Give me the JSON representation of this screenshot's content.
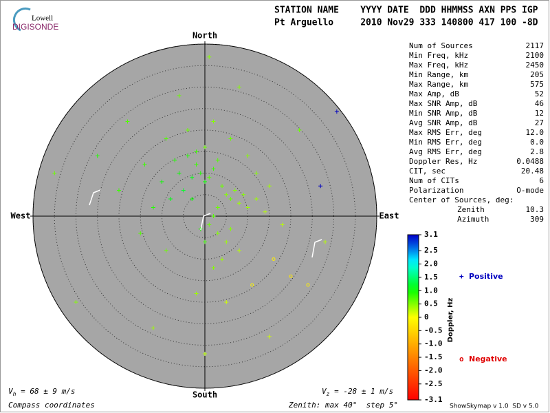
{
  "logo": {
    "top": "Lowell",
    "bottom": "DIGISONDE"
  },
  "header": {
    "columns": "STATION NAME    YYYY DATE  DDD HHMMSS AXN PPS IGP",
    "values": "Pt Arguello     2010 Nov29 333 140800 417 100 -8D"
  },
  "stats": [
    {
      "label": "Num of Sources",
      "value": "2117"
    },
    {
      "label": "Min Freq, kHz",
      "value": "2100"
    },
    {
      "label": "Max Freq, kHz",
      "value": "2450"
    },
    {
      "label": "Min Range, km",
      "value": "205"
    },
    {
      "label": "Max Range, km",
      "value": "575"
    },
    {
      "label": "Max Amp, dB",
      "value": "52"
    },
    {
      "label": "Max SNR Amp, dB",
      "value": "46"
    },
    {
      "label": "Min SNR Amp, dB",
      "value": "12"
    },
    {
      "label": "Avg SNR Amp, dB",
      "value": "27"
    },
    {
      "label": "Max RMS Err, deg",
      "value": "12.0"
    },
    {
      "label": "Min RMS Err, deg",
      "value": "0.0"
    },
    {
      "label": "Avg RMS Err, deg",
      "value": "2.8"
    },
    {
      "label": "Doppler Res, Hz",
      "value": "0.0488"
    },
    {
      "label": "CIT, sec",
      "value": "20.48"
    },
    {
      "label": "Num of CITs",
      "value": "6"
    },
    {
      "label": "Polarization",
      "value": "O-mode"
    }
  ],
  "center_of_sources": {
    "label": "Center of Sources, deg:",
    "zenith_label": "Zenith",
    "zenith": "10.3",
    "azimuth_label": "Azimuth",
    "azimuth": "309"
  },
  "chart_data": {
    "type": "scatter",
    "directions": {
      "north": "North",
      "south": "South",
      "west": "West",
      "east": "East"
    },
    "xlim": [
      -40,
      40
    ],
    "ylim": [
      -40,
      40
    ],
    "rings": [
      5,
      10,
      15,
      20,
      25,
      30,
      35,
      40
    ],
    "x": [
      -2,
      -1,
      0,
      1,
      2,
      -3,
      -4,
      -2,
      0,
      3,
      4,
      5,
      6,
      7,
      8,
      9,
      10,
      12,
      14,
      3,
      2,
      1,
      3,
      5,
      6,
      8,
      4,
      2,
      0,
      -1,
      -3,
      -5,
      -6,
      -7,
      -8,
      -10,
      -12,
      -14,
      -9,
      -4,
      2,
      6,
      10,
      12,
      15,
      18,
      16,
      20,
      24,
      11,
      5,
      -2,
      -9,
      -15,
      -20,
      -25,
      -18,
      -6,
      8,
      22,
      30.7,
      26.9,
      -30,
      -12,
      0,
      15,
      28,
      -35,
      1
    ],
    "y": [
      12,
      10,
      8,
      9,
      11,
      9,
      14,
      15,
      16,
      13,
      7,
      5,
      4,
      6,
      3,
      5,
      2,
      4,
      1,
      2,
      0,
      -2,
      -4,
      -6,
      -3,
      -8,
      -10,
      -12,
      -6,
      -3,
      4,
      6,
      10,
      13,
      4,
      8,
      2,
      12,
      18,
      20,
      22,
      18,
      14,
      10,
      7,
      -2,
      -10,
      -14,
      -16,
      -16,
      -20,
      -18,
      -8,
      -4,
      6,
      14,
      22,
      28,
      30,
      20,
      24.3,
      7.0,
      -20,
      -26,
      -32,
      -28,
      -6,
      10,
      37
    ],
    "doppler": [
      0.8,
      0.9,
      1.0,
      0.7,
      0.8,
      1.1,
      0.9,
      0.8,
      0.6,
      0.7,
      0.6,
      0.5,
      0.6,
      0.5,
      0.4,
      0.5,
      0.4,
      0.4,
      0.3,
      0.6,
      0.7,
      0.6,
      0.5,
      0.4,
      0.5,
      0.3,
      0.4,
      0.5,
      0.8,
      0.9,
      1.0,
      1.2,
      1.0,
      0.9,
      1.1,
      1.0,
      0.9,
      0.8,
      0.7,
      0.6,
      0.5,
      0.6,
      0.5,
      0.5,
      0.4,
      0.3,
      -0.2,
      -0.3,
      -0.2,
      -0.1,
      0.2,
      0.4,
      0.6,
      0.7,
      0.8,
      0.9,
      0.7,
      0.6,
      0.5,
      0.6,
      2.8,
      2.9,
      0.5,
      0.4,
      0.3,
      0.2,
      0.3,
      0.6,
      0.5
    ],
    "colorbar": {
      "label": "Doppler, Hz",
      "lim": [
        -3.1,
        3.1
      ],
      "ticks": [
        3.1,
        2.5,
        {
          "value": 2.0,
          "label": "2.0"
        },
        1.5,
        {
          "value": 1.0,
          "label": "1.0"
        },
        0.5,
        0,
        -0.5,
        {
          "value": -1.0,
          "label": "-1.0"
        },
        -1.5,
        {
          "value": -2.0,
          "label": "-2.0"
        },
        -2.5,
        -3.1
      ]
    },
    "legend": [
      {
        "marker": "+",
        "name": "Positive",
        "color": "#0000c0"
      },
      {
        "marker": "o",
        "name": "Negative",
        "color": "#e00000"
      }
    ]
  },
  "footer": {
    "vh": {
      "symbol": "V",
      "subscript": "h",
      "text": " = 68 ± 9 m/s"
    },
    "vz": {
      "symbol": "V",
      "subscript": "z",
      "text": " = -28 ± 1 m/s"
    },
    "coords": "Compass coordinates",
    "zenith": "Zenith: max 40°  step 5°",
    "version": "ShowSkymap v 1.0  SD v 5.0"
  }
}
